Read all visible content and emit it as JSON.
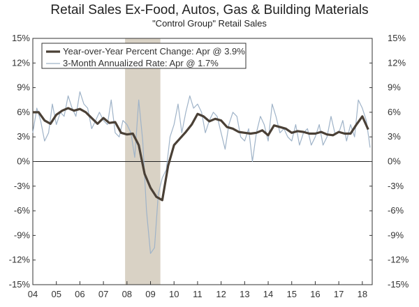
{
  "chart_data": {
    "type": "line",
    "title": "Retail Sales Ex-Food, Autos, Gas & Building Materials",
    "subtitle": "\"Control Group\" Retail Sales",
    "xlabel": "",
    "ylabel": "",
    "x_start": 2004,
    "x_end": 2018.42,
    "x_ticks": [
      "04",
      "05",
      "06",
      "07",
      "08",
      "09",
      "10",
      "11",
      "12",
      "13",
      "14",
      "15",
      "16",
      "17",
      "18"
    ],
    "ylim": [
      -15,
      15
    ],
    "y_ticks": [
      "15%",
      "12%",
      "9%",
      "6%",
      "3%",
      "0%",
      "-3%",
      "-6%",
      "-9%",
      "-12%",
      "-15%"
    ],
    "y_tick_values": [
      15,
      12,
      9,
      6,
      3,
      0,
      -3,
      -6,
      -9,
      -12,
      -15
    ],
    "grid": false,
    "legend_position": "top-left",
    "recession_shading": {
      "start": 2007.92,
      "end": 2009.42,
      "color": "#d9d2c5"
    },
    "series": [
      {
        "name": "Year-over-Year Percent Change: Apr @ 3.9%",
        "color": "#4a4036",
        "x": [
          2004.0,
          2004.25,
          2004.5,
          2004.75,
          2005.0,
          2005.25,
          2005.5,
          2005.75,
          2006.0,
          2006.25,
          2006.5,
          2006.75,
          2007.0,
          2007.25,
          2007.5,
          2007.75,
          2008.0,
          2008.25,
          2008.5,
          2008.75,
          2009.0,
          2009.25,
          2009.5,
          2009.75,
          2010.0,
          2010.25,
          2010.5,
          2010.75,
          2011.0,
          2011.25,
          2011.5,
          2011.75,
          2012.0,
          2012.25,
          2012.5,
          2012.75,
          2013.0,
          2013.25,
          2013.5,
          2013.75,
          2014.0,
          2014.25,
          2014.5,
          2014.75,
          2015.0,
          2015.25,
          2015.5,
          2015.75,
          2016.0,
          2016.25,
          2016.5,
          2016.75,
          2017.0,
          2017.25,
          2017.5,
          2017.75,
          2018.0,
          2018.25
        ],
        "values": [
          6.0,
          6.0,
          5.0,
          4.6,
          5.7,
          6.2,
          6.5,
          6.2,
          6.4,
          6.0,
          5.3,
          4.6,
          5.3,
          4.7,
          4.8,
          3.5,
          3.3,
          3.4,
          2.0,
          -1.5,
          -3.2,
          -4.3,
          -4.7,
          -0.5,
          2.0,
          2.8,
          3.6,
          4.5,
          5.8,
          5.5,
          4.9,
          5.2,
          5.0,
          4.2,
          4.0,
          3.6,
          3.5,
          3.4,
          3.5,
          3.8,
          3.2,
          4.4,
          4.2,
          4.0,
          3.5,
          3.7,
          3.6,
          3.4,
          3.4,
          3.6,
          3.3,
          3.2,
          3.6,
          3.4,
          3.4,
          4.5,
          5.5,
          3.9
        ]
      },
      {
        "name": "3-Month Annualized Rate: Apr @ 1.7%",
        "color": "#9fb3c8",
        "x": [
          2004.0,
          2004.17,
          2004.33,
          2004.5,
          2004.67,
          2004.83,
          2005.0,
          2005.17,
          2005.33,
          2005.5,
          2005.67,
          2005.83,
          2006.0,
          2006.17,
          2006.33,
          2006.5,
          2006.67,
          2006.83,
          2007.0,
          2007.17,
          2007.33,
          2007.5,
          2007.67,
          2007.83,
          2008.0,
          2008.17,
          2008.33,
          2008.5,
          2008.67,
          2008.83,
          2009.0,
          2009.17,
          2009.33,
          2009.5,
          2009.67,
          2009.83,
          2010.0,
          2010.17,
          2010.33,
          2010.5,
          2010.67,
          2010.83,
          2011.0,
          2011.17,
          2011.33,
          2011.5,
          2011.67,
          2011.83,
          2012.0,
          2012.17,
          2012.33,
          2012.5,
          2012.67,
          2012.83,
          2013.0,
          2013.17,
          2013.33,
          2013.5,
          2013.67,
          2013.83,
          2014.0,
          2014.17,
          2014.33,
          2014.5,
          2014.67,
          2014.83,
          2015.0,
          2015.17,
          2015.33,
          2015.5,
          2015.67,
          2015.83,
          2016.0,
          2016.17,
          2016.33,
          2016.5,
          2016.67,
          2016.83,
          2017.0,
          2017.17,
          2017.33,
          2017.5,
          2017.67,
          2017.83,
          2018.0,
          2018.17,
          2018.33
        ],
        "values": [
          3.5,
          6.5,
          5.0,
          2.5,
          3.5,
          7.0,
          4.5,
          6.0,
          5.5,
          8.0,
          6.5,
          5.5,
          8.5,
          7.0,
          6.5,
          4.0,
          5.0,
          6.0,
          5.0,
          4.5,
          7.5,
          3.5,
          3.0,
          5.0,
          4.5,
          3.5,
          0.5,
          7.5,
          2.5,
          -6.0,
          -11.2,
          -10.5,
          -4.0,
          -2.0,
          -1.0,
          3.0,
          4.5,
          7.0,
          3.5,
          6.0,
          8.0,
          6.5,
          7.0,
          6.0,
          3.5,
          5.0,
          6.0,
          5.5,
          3.5,
          1.5,
          4.5,
          6.0,
          5.5,
          3.0,
          2.5,
          4.0,
          0.0,
          3.5,
          5.5,
          4.5,
          2.5,
          7.0,
          5.5,
          3.5,
          4.0,
          3.0,
          2.5,
          4.5,
          2.0,
          3.5,
          4.0,
          2.0,
          3.0,
          4.5,
          2.0,
          3.0,
          5.5,
          3.5,
          3.5,
          5.0,
          2.5,
          4.5,
          3.0,
          7.5,
          6.5,
          5.0,
          1.7
        ]
      }
    ]
  }
}
